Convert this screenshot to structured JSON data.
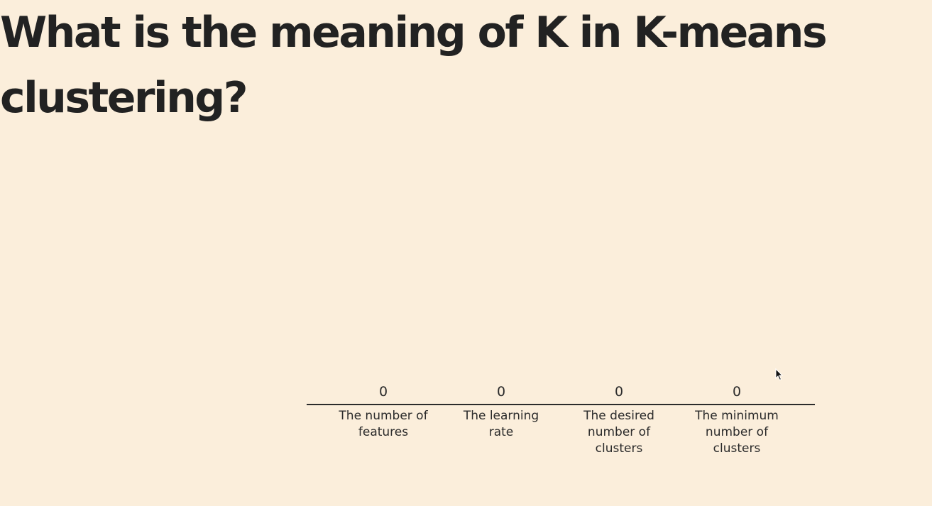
{
  "question": "What is the meaning of K in K-means clustering?",
  "options": [
    {
      "count": "0",
      "label": "The number of features"
    },
    {
      "count": "0",
      "label": "The learning rate"
    },
    {
      "count": "0",
      "label": "The desired number of clusters"
    },
    {
      "count": "0",
      "label": "The minimum number of clusters"
    }
  ],
  "colors": {
    "background": "#fbeedb",
    "text": "#222222",
    "axis_line": "#2b2b2b"
  },
  "icons": {
    "cursor": "mouse-pointer-icon"
  }
}
